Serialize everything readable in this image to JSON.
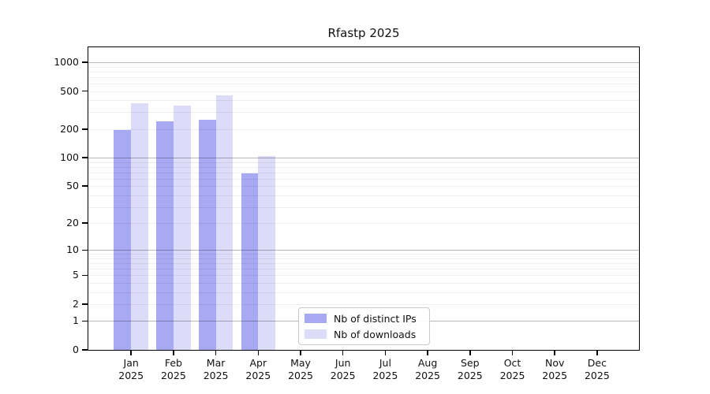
{
  "chart_data": {
    "type": "bar",
    "title": "Rfastp 2025",
    "year_label": "2025",
    "months": [
      "Jan",
      "Feb",
      "Mar",
      "Apr",
      "May",
      "Jun",
      "Jul",
      "Aug",
      "Sep",
      "Oct",
      "Nov",
      "Dec"
    ],
    "categories": [
      "Jan 2025",
      "Feb 2025",
      "Mar 2025",
      "Apr 2025",
      "May 2025",
      "Jun 2025",
      "Jul 2025",
      "Aug 2025",
      "Sep 2025",
      "Oct 2025",
      "Nov 2025",
      "Dec 2025"
    ],
    "series": [
      {
        "name": "Nb of distinct IPs",
        "color": "#a8a9f3",
        "values": [
          195,
          240,
          252,
          68,
          null,
          null,
          null,
          null,
          null,
          null,
          null,
          null
        ]
      },
      {
        "name": "Nb of downloads",
        "color": "#dcdcf9",
        "values": [
          370,
          350,
          450,
          105,
          null,
          null,
          null,
          null,
          null,
          null,
          null,
          null
        ]
      }
    ],
    "y_axis": {
      "scale": "log10(1+v)",
      "ticks": [
        0,
        1,
        2,
        5,
        10,
        20,
        50,
        100,
        200,
        500,
        1000
      ],
      "max": 1400,
      "major_gridlines": [
        1,
        10,
        100,
        1000
      ],
      "minor_gridlines": [
        2,
        3,
        4,
        5,
        6,
        7,
        8,
        9,
        20,
        30,
        40,
        50,
        60,
        70,
        80,
        90,
        200,
        300,
        400,
        500,
        600,
        700,
        800,
        900
      ]
    },
    "legend": {
      "position": "bottom-center"
    }
  }
}
